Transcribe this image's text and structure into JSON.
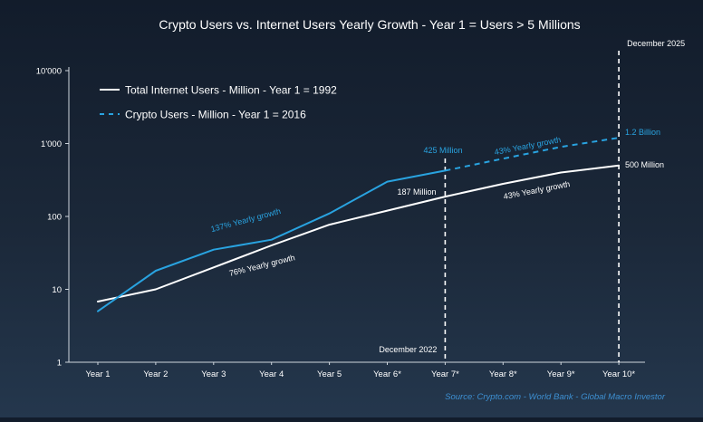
{
  "chart_data": {
    "type": "line",
    "title": "Crypto Users vs. Internet Users Yearly Growth - Year 1 = Users > 5 Millions",
    "x_categories": [
      "Year 1",
      "Year 2",
      "Year 3",
      "Year 4",
      "Year 5",
      "Year 6*",
      "Year 7*",
      "Year 8*",
      "Year 9*",
      "Year 10*"
    ],
    "y_scale": "log",
    "ylim": [
      1,
      10000
    ],
    "y_ticks": [
      1,
      10,
      100,
      1000,
      10000
    ],
    "y_tick_labels": [
      "1",
      "10",
      "100",
      "1'000",
      "10'000"
    ],
    "grid": false,
    "legend_position": "top-left",
    "series": [
      {
        "name": "Total Internet Users - Million - Year 1 = 1992",
        "color": "#ffffff",
        "style": "solid",
        "values": [
          6.8,
          10,
          20,
          40,
          77,
          120,
          187,
          280,
          400,
          500
        ]
      },
      {
        "name": "Crypto Users - Million - Year 1 = 2016",
        "color": "#29a3e0",
        "style": "solid",
        "values": [
          5,
          18,
          35,
          48,
          110,
          300,
          425,
          null,
          null,
          null
        ]
      },
      {
        "name": "Crypto Users - Million - Year 1 = 2016",
        "color": "#29a3e0",
        "style": "dashed",
        "values": [
          null,
          null,
          null,
          null,
          null,
          null,
          425,
          620,
          900,
          1200
        ]
      }
    ],
    "vlines": [
      {
        "x": "Year 7*",
        "label": "December 2022",
        "label_pos": "bottom"
      },
      {
        "x": "Year 10*",
        "label": "December 2025",
        "label_pos": "top"
      }
    ],
    "annotations": [
      {
        "text": "137% Yearly growth",
        "color": "#29a3e0"
      },
      {
        "text": "76% Yearly growth",
        "color": "#ffffff"
      },
      {
        "text": "425 Million",
        "color": "#29a3e0"
      },
      {
        "text": "187 Million",
        "color": "#ffffff"
      },
      {
        "text": "43% Yearly growth",
        "color": "#29a3e0"
      },
      {
        "text": "43% Yearly growth",
        "color": "#ffffff"
      },
      {
        "text": "1.2 Billion",
        "color": "#29a3e0"
      },
      {
        "text": "500 Million",
        "color": "#ffffff"
      }
    ],
    "source": "Source: Crypto.com - World Bank - Global Macro Investor"
  }
}
